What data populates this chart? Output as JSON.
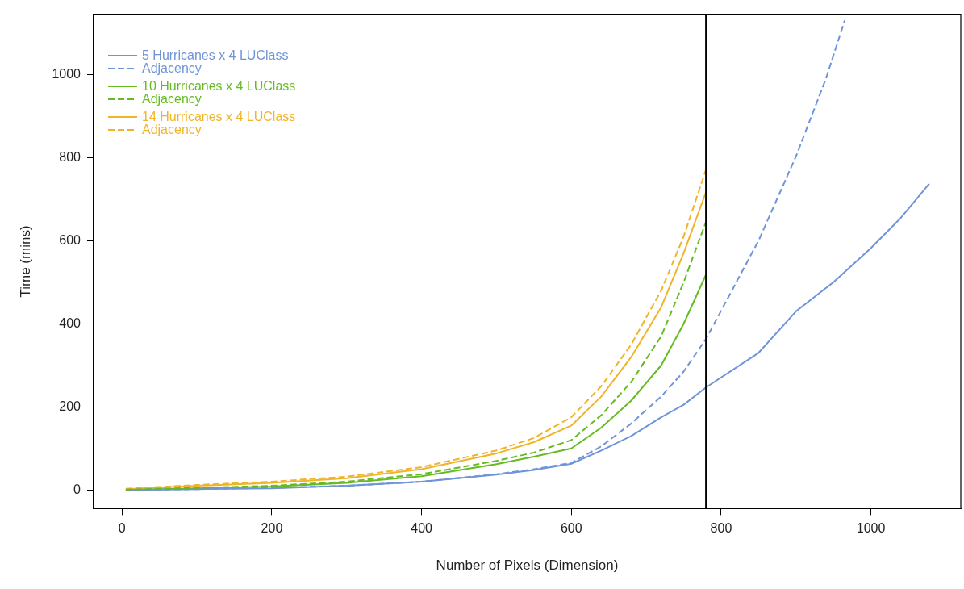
{
  "chart_data": {
    "type": "line",
    "xlabel": "Number of Pixels (Dimension)",
    "ylabel": "Time (mins)",
    "xlim": [
      -38,
      1120
    ],
    "ylim": [
      -45,
      1145
    ],
    "xticks": [
      0,
      200,
      400,
      600,
      800,
      1000
    ],
    "yticks": [
      0,
      200,
      400,
      600,
      800,
      1000
    ],
    "grid": false,
    "legend": "top left",
    "marker": "none",
    "ref_lines": [
      {
        "axis": "x",
        "value": 780,
        "color": "#000000"
      }
    ],
    "series": [
      {
        "name": "5 Hurricanes x 4 LUClass",
        "color": "#6f94d8",
        "line_style": "solid",
        "x": [
          5,
          100,
          200,
          300,
          400,
          500,
          550,
          600,
          640,
          680,
          720,
          750,
          780,
          850,
          900,
          950,
          1000,
          1040,
          1078
        ],
        "values": [
          0,
          2,
          4,
          10,
          20,
          37,
          48,
          63,
          95,
          130,
          175,
          205,
          247,
          330,
          430,
          500,
          582,
          655,
          737
        ]
      },
      {
        "name": "Adjacency",
        "color": "#6f94d8",
        "line_style": "dashed",
        "x": [
          5,
          100,
          200,
          300,
          400,
          500,
          550,
          600,
          640,
          680,
          720,
          750,
          780,
          850,
          900,
          940,
          965
        ],
        "values": [
          0,
          2,
          5,
          10,
          20,
          38,
          50,
          65,
          105,
          160,
          225,
          285,
          364,
          600,
          803,
          990,
          1130
        ]
      },
      {
        "name": "10 Hurricanes x 4 LUClass",
        "color": "#66bb22",
        "line_style": "solid",
        "x": [
          5,
          100,
          200,
          300,
          400,
          500,
          550,
          600,
          640,
          680,
          720,
          750,
          780
        ],
        "values": [
          0,
          4,
          8,
          17,
          33,
          62,
          80,
          100,
          150,
          215,
          300,
          400,
          519
        ]
      },
      {
        "name": "Adjacency",
        "color": "#66bb22",
        "line_style": "dashed",
        "x": [
          5,
          100,
          200,
          300,
          400,
          500,
          550,
          600,
          640,
          680,
          720,
          750,
          780
        ],
        "values": [
          1,
          5,
          10,
          20,
          38,
          70,
          90,
          120,
          180,
          260,
          370,
          500,
          646
        ]
      },
      {
        "name": "14 Hurricanes x 4 LUClass",
        "color": "#f0b429",
        "line_style": "solid",
        "x": [
          5,
          100,
          200,
          300,
          400,
          500,
          550,
          600,
          640,
          680,
          720,
          750,
          780
        ],
        "values": [
          2,
          10,
          17,
          28,
          50,
          88,
          115,
          155,
          225,
          320,
          440,
          570,
          718
        ]
      },
      {
        "name": "Adjacency",
        "color": "#f0b429",
        "line_style": "dashed",
        "x": [
          5,
          100,
          200,
          300,
          400,
          500,
          550,
          600,
          640,
          680,
          720,
          750,
          780
        ],
        "values": [
          3,
          12,
          20,
          32,
          55,
          95,
          125,
          175,
          250,
          350,
          480,
          610,
          772
        ]
      }
    ]
  }
}
